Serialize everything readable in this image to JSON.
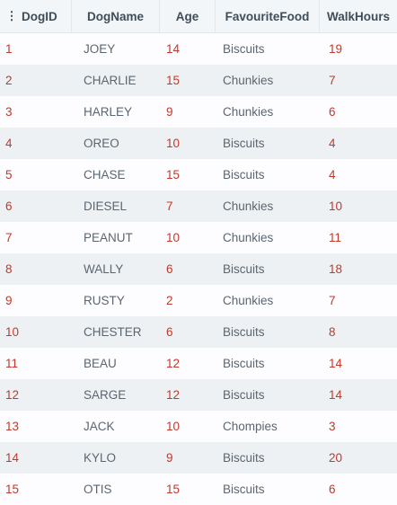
{
  "table": {
    "menu_icon": "⋮",
    "columns": [
      "DogID",
      "DogName",
      "Age",
      "FavouriteFood",
      "WalkHours"
    ],
    "rows": [
      [
        "1",
        "JOEY",
        "14",
        "Biscuits",
        "19"
      ],
      [
        "2",
        "CHARLIE",
        "15",
        "Chunkies",
        "7"
      ],
      [
        "3",
        "HARLEY",
        "9",
        "Chunkies",
        "6"
      ],
      [
        "4",
        "OREO",
        "10",
        "Biscuits",
        "4"
      ],
      [
        "5",
        "CHASE",
        "15",
        "Biscuits",
        "4"
      ],
      [
        "6",
        "DIESEL",
        "7",
        "Chunkies",
        "10"
      ],
      [
        "7",
        "PEANUT",
        "10",
        "Chunkies",
        "11"
      ],
      [
        "8",
        "WALLY",
        "6",
        "Biscuits",
        "18"
      ],
      [
        "9",
        "RUSTY",
        "2",
        "Chunkies",
        "7"
      ],
      [
        "10",
        "CHESTER",
        "6",
        "Biscuits",
        "8"
      ],
      [
        "11",
        "BEAU",
        "12",
        "Biscuits",
        "14"
      ],
      [
        "12",
        "SARGE",
        "12",
        "Biscuits",
        "14"
      ],
      [
        "13",
        "JACK",
        "10",
        "Chompies",
        "3"
      ],
      [
        "14",
        "KYLO",
        "9",
        "Biscuits",
        "20"
      ],
      [
        "15",
        "OTIS",
        "15",
        "Biscuits",
        "6"
      ]
    ]
  },
  "colors": {
    "numeric_text": "#c0392b",
    "string_text": "#5b6670",
    "header_bg": "#f3f6f8",
    "stripe_bg": "#eef1f4"
  }
}
